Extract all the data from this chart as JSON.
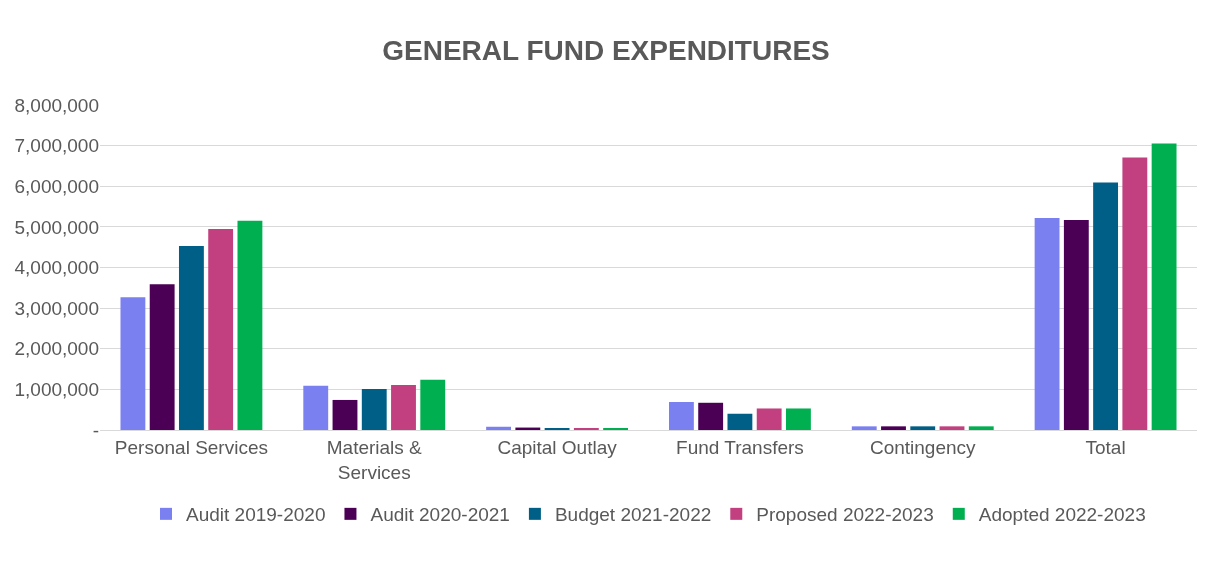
{
  "chart_data": {
    "type": "bar",
    "title": "GENERAL FUND EXPENDITURES",
    "categories": [
      "Personal Services",
      "Materials &\nServices",
      "Capital Outlay",
      "Fund Transfers",
      "Contingency",
      "Total"
    ],
    "series": [
      {
        "name": "Audit 2019-2020",
        "color": "#7b80f0",
        "values": [
          3270000,
          1090000,
          80000,
          690000,
          90000,
          5220000
        ]
      },
      {
        "name": "Audit 2020-2021",
        "color": "#4b0055",
        "values": [
          3590000,
          740000,
          60000,
          670000,
          90000,
          5170000
        ]
      },
      {
        "name": "Budget 2021-2022",
        "color": "#005f86",
        "values": [
          4530000,
          1010000,
          50000,
          400000,
          90000,
          6090000
        ]
      },
      {
        "name": "Proposed 2022-2023",
        "color": "#c2407f",
        "values": [
          4950000,
          1110000,
          30000,
          530000,
          90000,
          6710000
        ]
      },
      {
        "name": "Adopted 2022-2023",
        "color": "#00b050",
        "values": [
          5150000,
          1240000,
          30000,
          530000,
          90000,
          7050000
        ]
      }
    ],
    "ylim": [
      0,
      8000000
    ],
    "yticks": [
      {
        "value": 0,
        "label": "-"
      },
      {
        "value": 1000000,
        "label": "1,000,000"
      },
      {
        "value": 2000000,
        "label": "2,000,000"
      },
      {
        "value": 3000000,
        "label": "3,000,000"
      },
      {
        "value": 4000000,
        "label": "4,000,000"
      },
      {
        "value": 5000000,
        "label": "5,000,000"
      },
      {
        "value": 6000000,
        "label": "6,000,000"
      },
      {
        "value": 7000000,
        "label": "7,000,000"
      },
      {
        "value": 8000000,
        "label": "8,000,000"
      }
    ],
    "grid": "y",
    "legend": "bottom"
  }
}
